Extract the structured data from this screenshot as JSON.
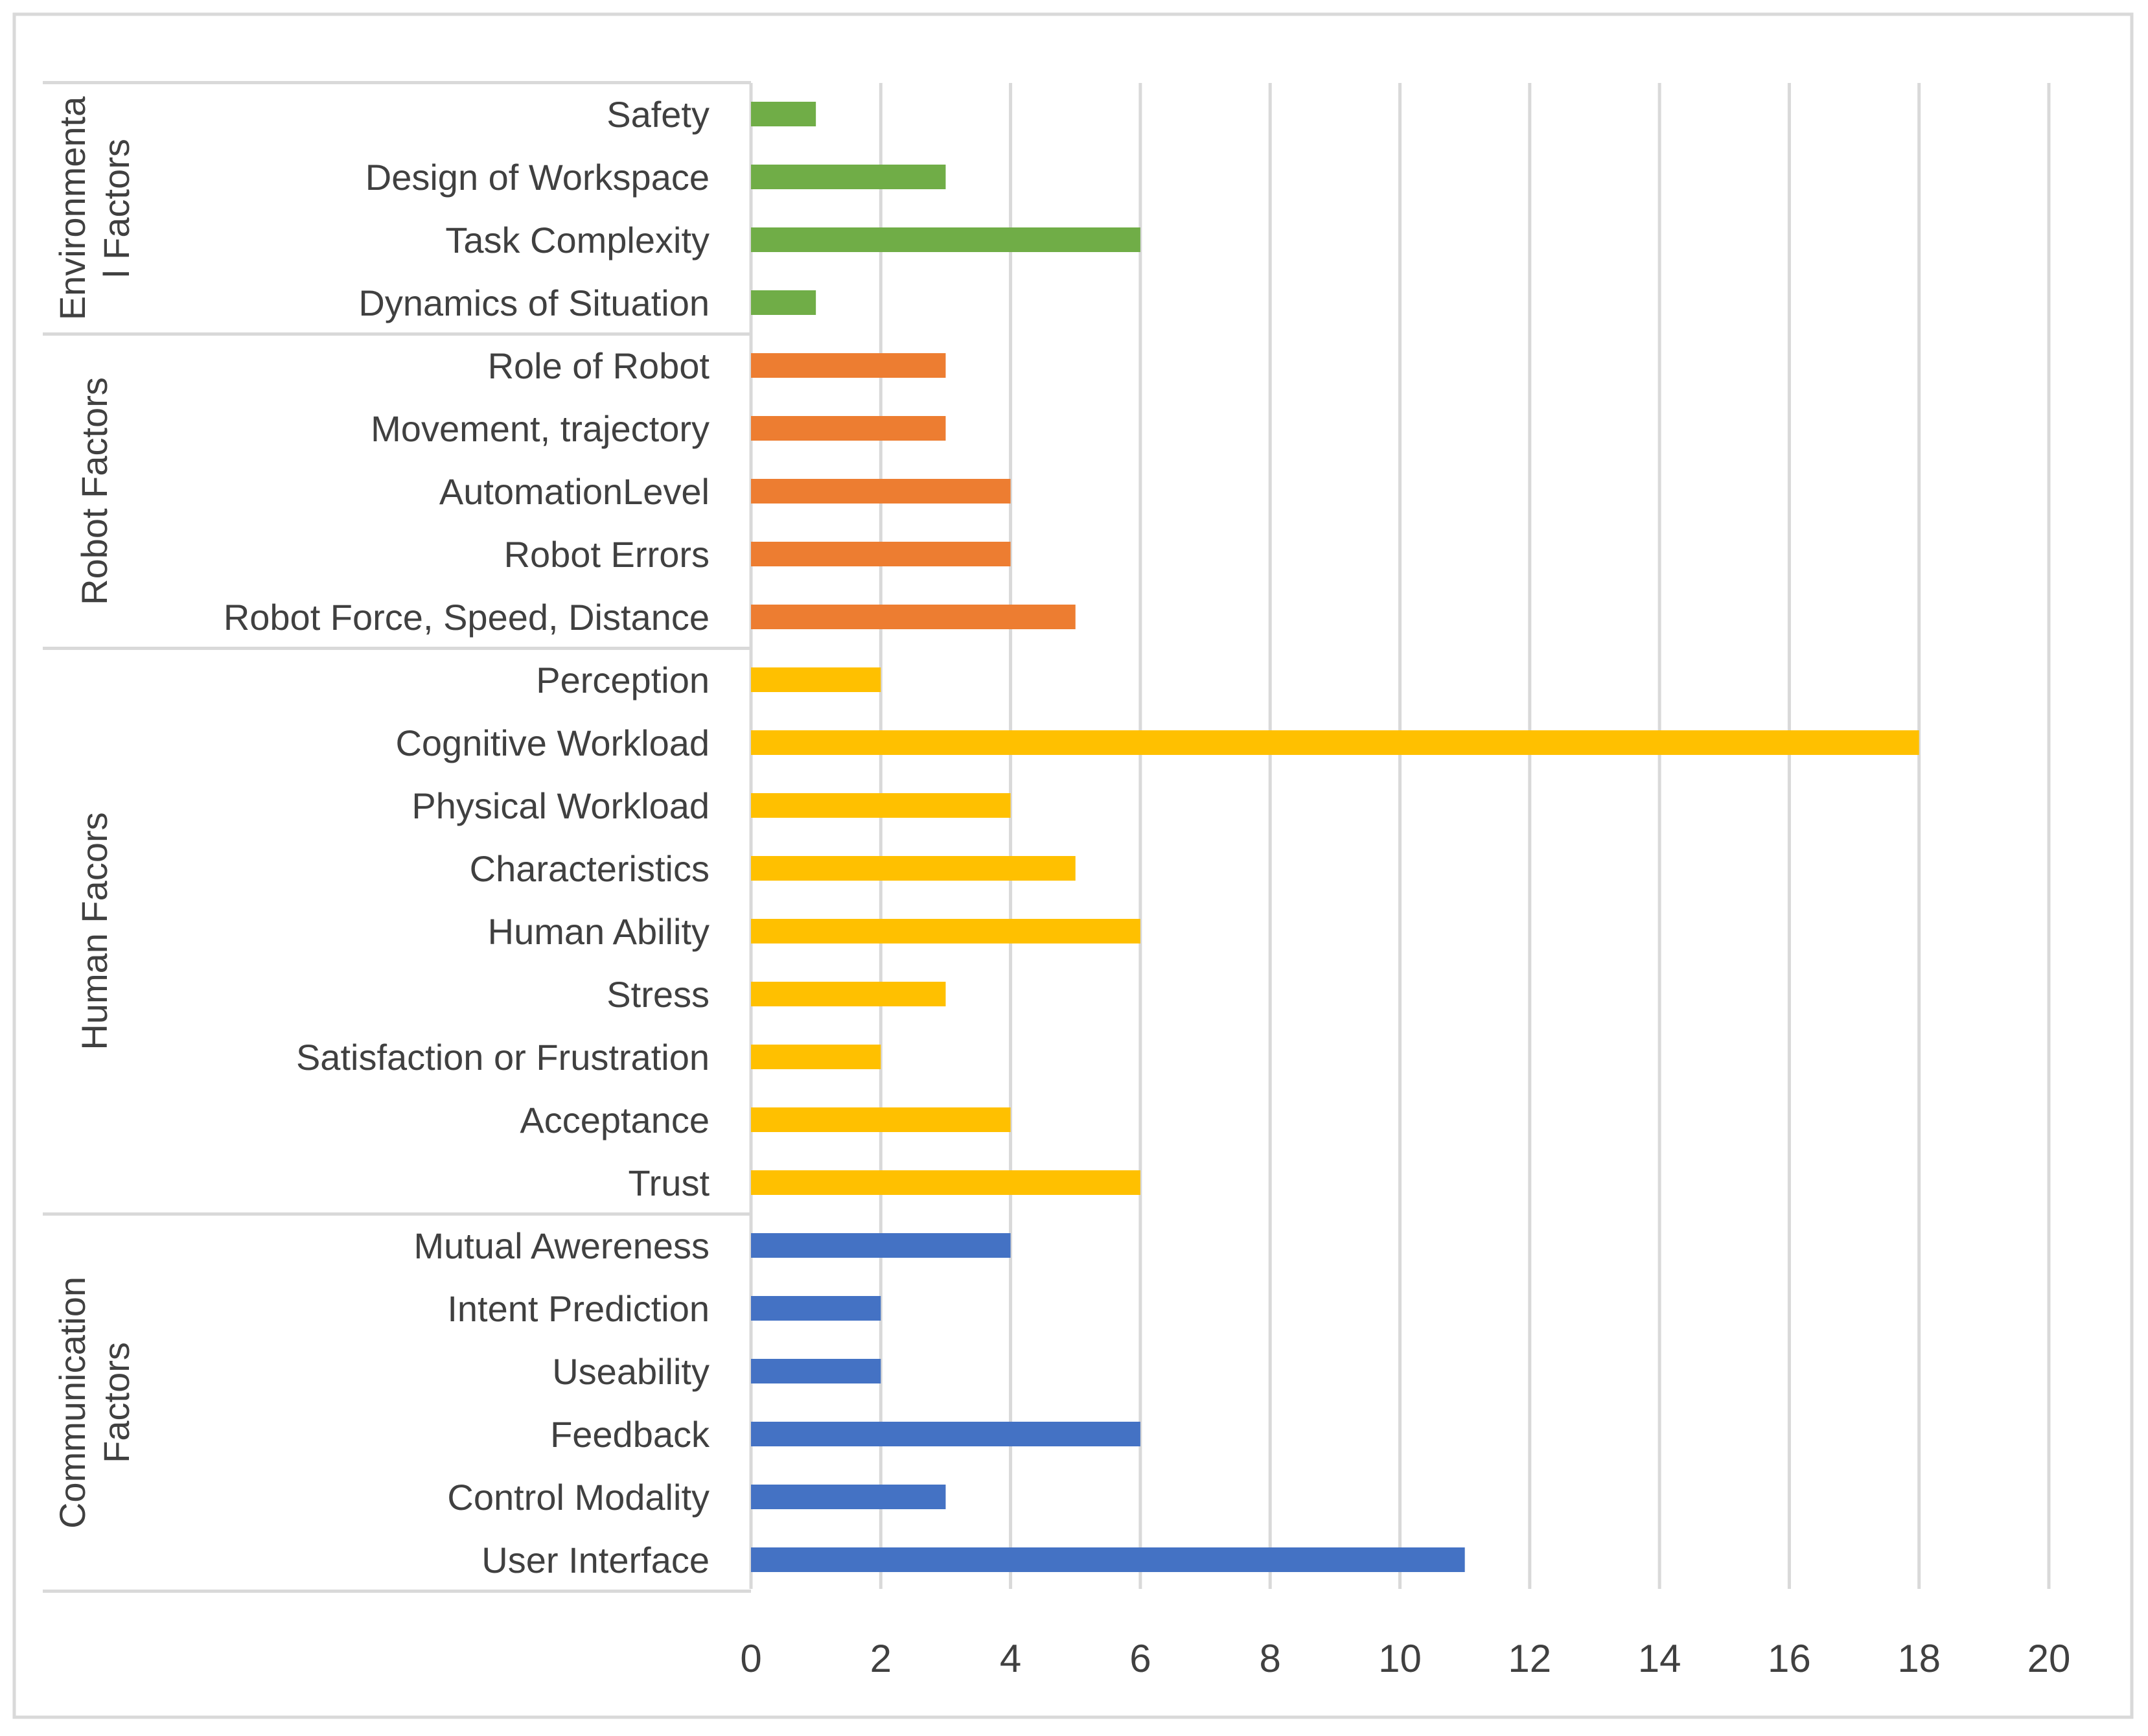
{
  "chart_data": {
    "type": "bar",
    "orientation": "horizontal",
    "title": "",
    "xlabel": "",
    "ylabel": "",
    "xlim": [
      0,
      20
    ],
    "x_ticks": [
      0,
      2,
      4,
      6,
      8,
      10,
      12,
      14,
      16,
      18,
      20
    ],
    "grid": "vertical",
    "legend": "none",
    "groups": [
      {
        "name_lines": [
          "Environmenta",
          "l Factors"
        ],
        "color": "#70AD47",
        "items": [
          {
            "label": "Safety",
            "value": 1
          },
          {
            "label": "Design of Workspace",
            "value": 3
          },
          {
            "label": "Task Complexity",
            "value": 6
          },
          {
            "label": "Dynamics of Situation",
            "value": 1
          }
        ]
      },
      {
        "name_lines": [
          "Robot Factors"
        ],
        "color": "#ED7D31",
        "items": [
          {
            "label": "Role of Robot",
            "value": 3
          },
          {
            "label": "Movement, trajectory",
            "value": 3
          },
          {
            "label": "AutomationLevel",
            "value": 4
          },
          {
            "label": "Robot Errors",
            "value": 4
          },
          {
            "label": "Robot Force, Speed, Distance",
            "value": 5
          }
        ]
      },
      {
        "name_lines": [
          "Human Facors"
        ],
        "color": "#FFC000",
        "items": [
          {
            "label": "Perception",
            "value": 2
          },
          {
            "label": "Cognitive Workload",
            "value": 18
          },
          {
            "label": "Physical Workload",
            "value": 4
          },
          {
            "label": "Characteristics",
            "value": 5
          },
          {
            "label": "Human Ability",
            "value": 6
          },
          {
            "label": "Stress",
            "value": 3
          },
          {
            "label": "Satisfaction or Frustration",
            "value": 2
          },
          {
            "label": "Acceptance",
            "value": 4
          },
          {
            "label": "Trust",
            "value": 6
          }
        ]
      },
      {
        "name_lines": [
          "Communication",
          "Factors"
        ],
        "color": "#4472C4",
        "items": [
          {
            "label": "Mutual Awereness",
            "value": 4
          },
          {
            "label": "Intent Prediction",
            "value": 2
          },
          {
            "label": "Useability",
            "value": 2
          },
          {
            "label": "Feedback",
            "value": 6
          },
          {
            "label": "Control Modality",
            "value": 3
          },
          {
            "label": "User Interface",
            "value": 11
          }
        ]
      }
    ]
  }
}
